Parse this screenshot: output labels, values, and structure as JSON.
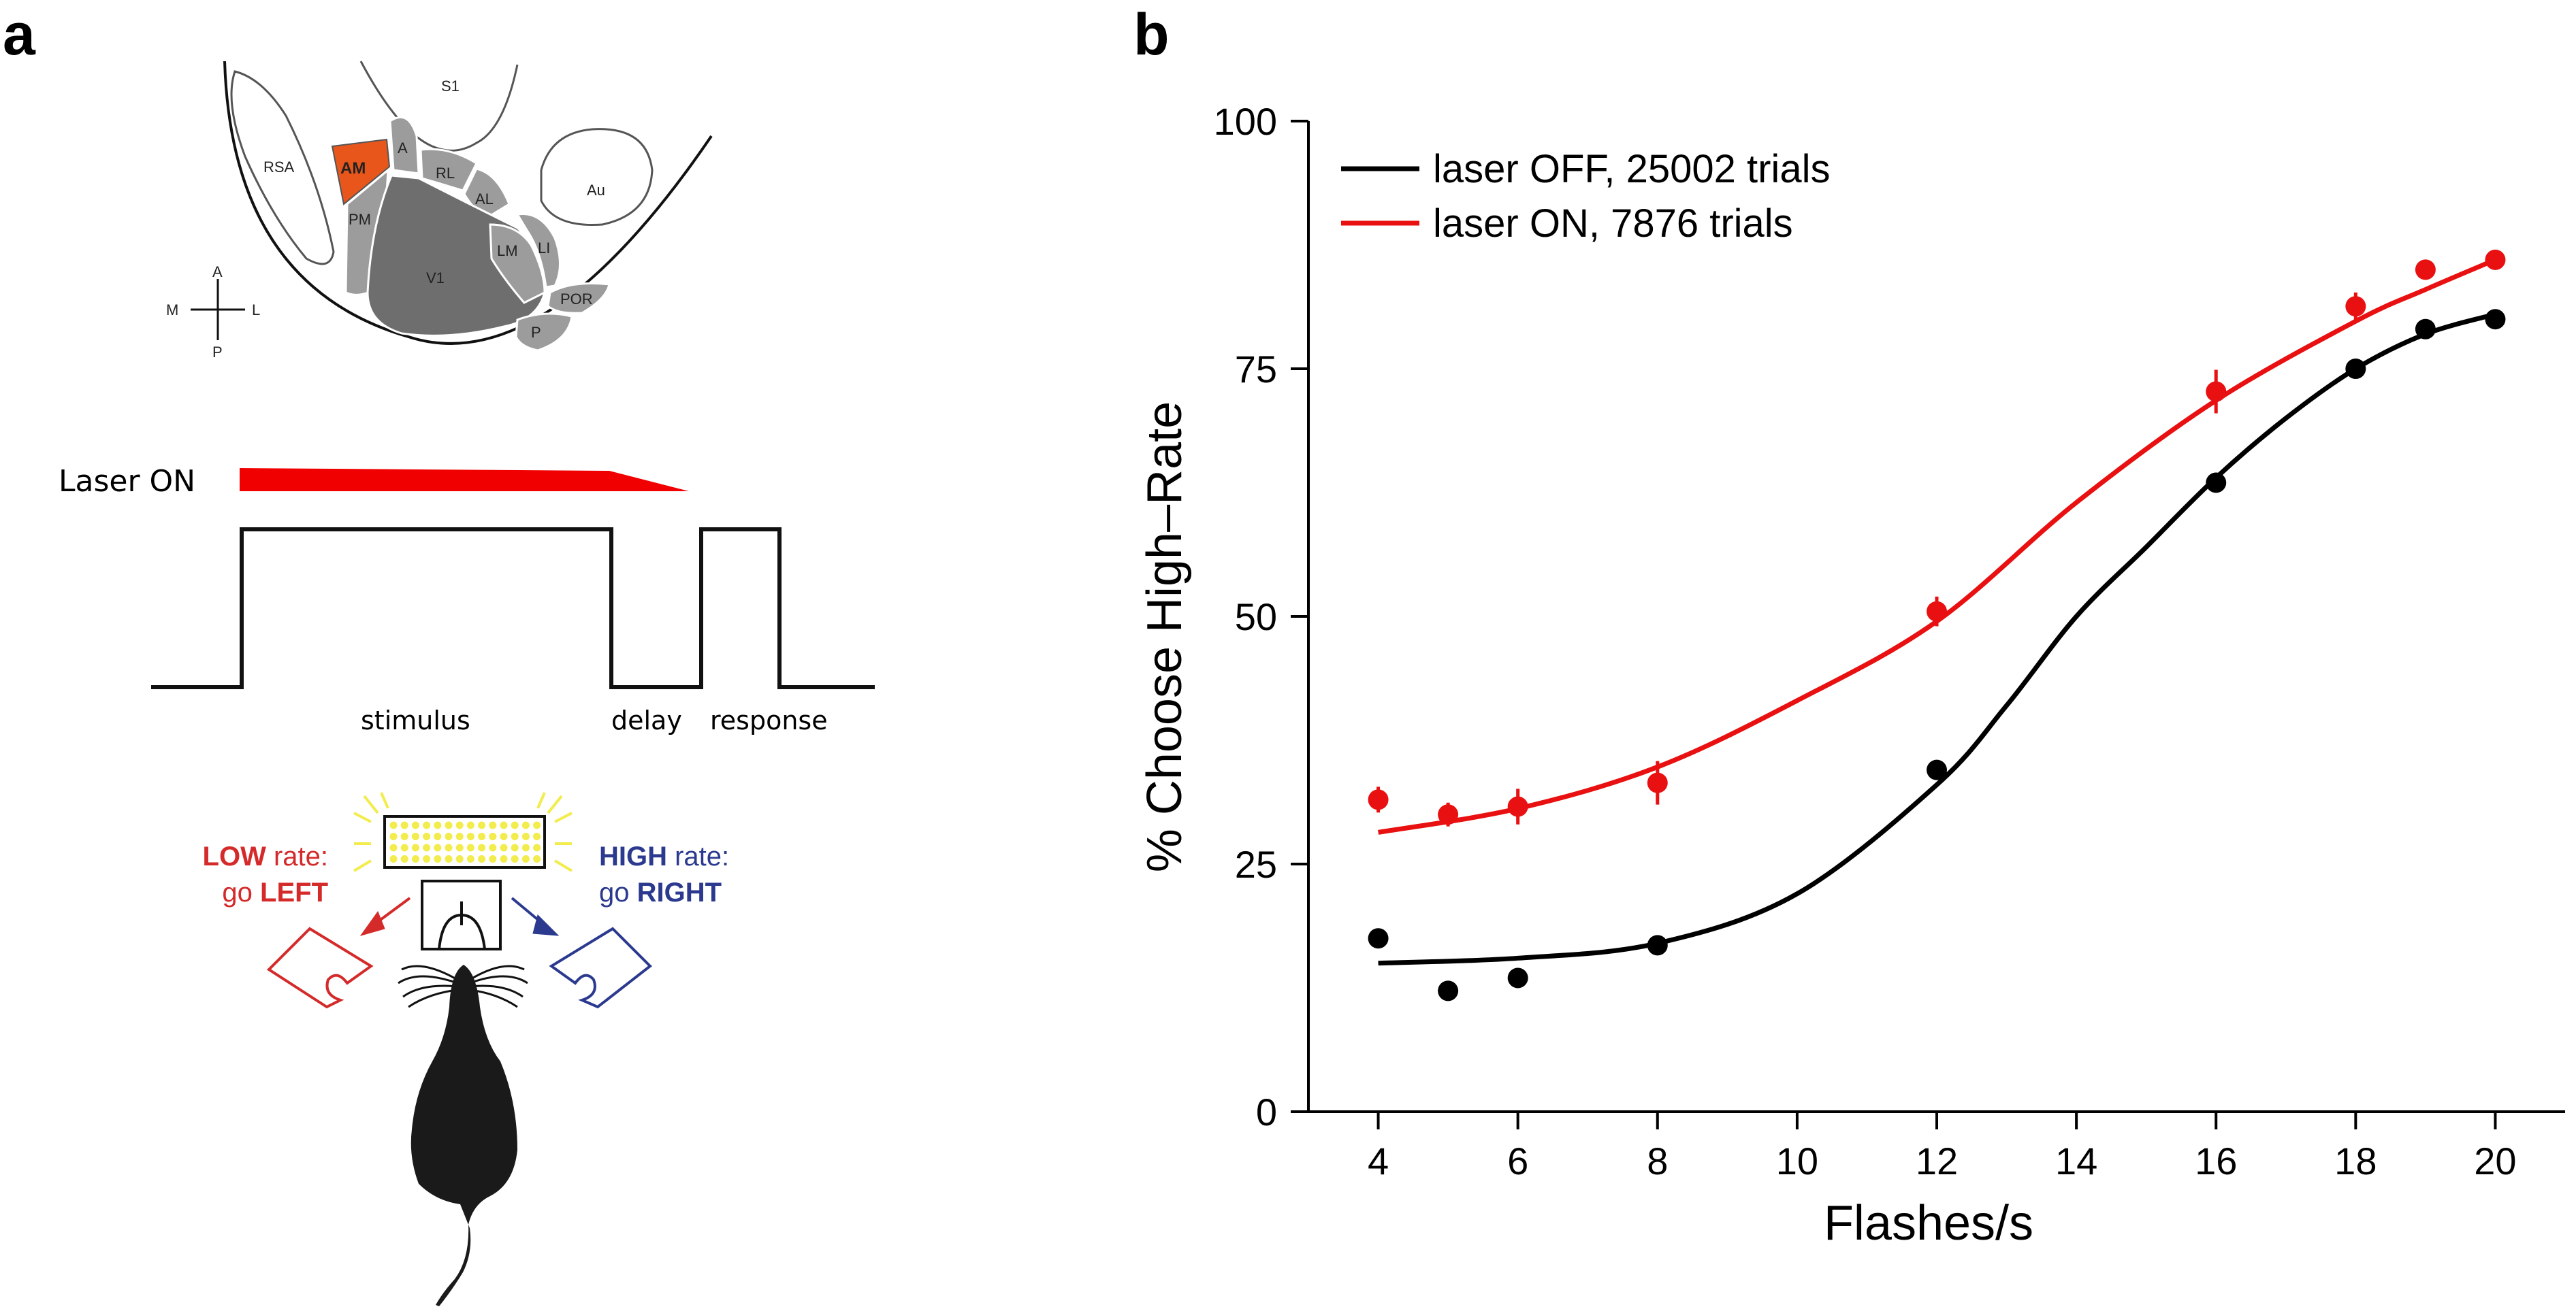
{
  "panel_a": {
    "letter": "a",
    "brain": {
      "areas": {
        "s1": "S1",
        "rsa": "RSA",
        "am": "AM",
        "a": "A",
        "rl": "RL",
        "al": "AL",
        "pm": "PM",
        "lm": "LM",
        "li": "LI",
        "v1": "V1",
        "por": "POR",
        "p": "P",
        "au": "Au"
      },
      "highlight_color": "#e8561c",
      "compass": {
        "a": "A",
        "m": "M",
        "l": "L",
        "p": "P"
      }
    },
    "timeline": {
      "laser_label": "Laser ON",
      "laser_color": "#f00000",
      "stimulus_label": "stimulus",
      "delay_label": "delay",
      "response_label": "response"
    },
    "task": {
      "low_bold": "LOW",
      "low_rest": " rate:",
      "go_left_prefix": "go ",
      "go_left_bold": "LEFT",
      "high_bold": "HIGH",
      "high_rest": " rate:",
      "go_right_prefix": "go ",
      "go_right_bold": "RIGHT",
      "low_color": "#d42a2a",
      "high_color": "#2b3a8f",
      "light_color": "#f2ec4c"
    }
  },
  "panel_b": {
    "letter": "b",
    "chart_data": {
      "type": "scatter",
      "xlabel": "Flashes/s",
      "ylabel": "% Choose High–Rate",
      "xlim": [
        3,
        21
      ],
      "ylim": [
        0,
        100
      ],
      "xticks": [
        4,
        6,
        8,
        10,
        12,
        14,
        16,
        18,
        20
      ],
      "yticks": [
        0,
        25,
        50,
        75,
        100
      ],
      "grid": false,
      "legend_position": "top-left",
      "series": [
        {
          "name": "laser OFF, 25002 trials",
          "color": "#000000",
          "x": [
            4,
            5,
            6,
            8,
            12,
            16,
            18,
            19,
            20
          ],
          "y": [
            17.5,
            12.2,
            13.5,
            16.8,
            34.5,
            63.5,
            75,
            79,
            80
          ],
          "err": [
            0,
            0,
            0,
            0,
            0,
            0,
            0,
            0,
            0
          ],
          "fit": {
            "x": [
              4,
              6,
              8,
              10,
              12,
              13,
              14,
              15,
              16,
              17,
              18,
              19,
              20
            ],
            "y": [
              15,
              15.5,
              17,
              22,
              33,
              41,
              50,
              57,
              64,
              70,
              75,
              78.5,
              80.5
            ]
          }
        },
        {
          "name": "laser ON, 7876 trials",
          "color": "#e81010",
          "x": [
            4,
            5,
            6,
            8,
            12,
            16,
            18,
            19,
            20
          ],
          "y": [
            31.5,
            30,
            30.8,
            33.2,
            50.5,
            72.7,
            81.3,
            85,
            86
          ],
          "err": [
            1.3,
            1.2,
            1.8,
            2.2,
            1.5,
            2.2,
            1.4,
            1.0,
            0.8
          ],
          "fit": {
            "x": [
              4,
              6,
              8,
              10,
              12,
              14,
              16,
              18,
              19,
              20
            ],
            "y": [
              28.2,
              30.6,
              34.8,
              41.5,
              49.5,
              61.5,
              71.8,
              79.8,
              83,
              86
            ]
          }
        }
      ]
    }
  }
}
